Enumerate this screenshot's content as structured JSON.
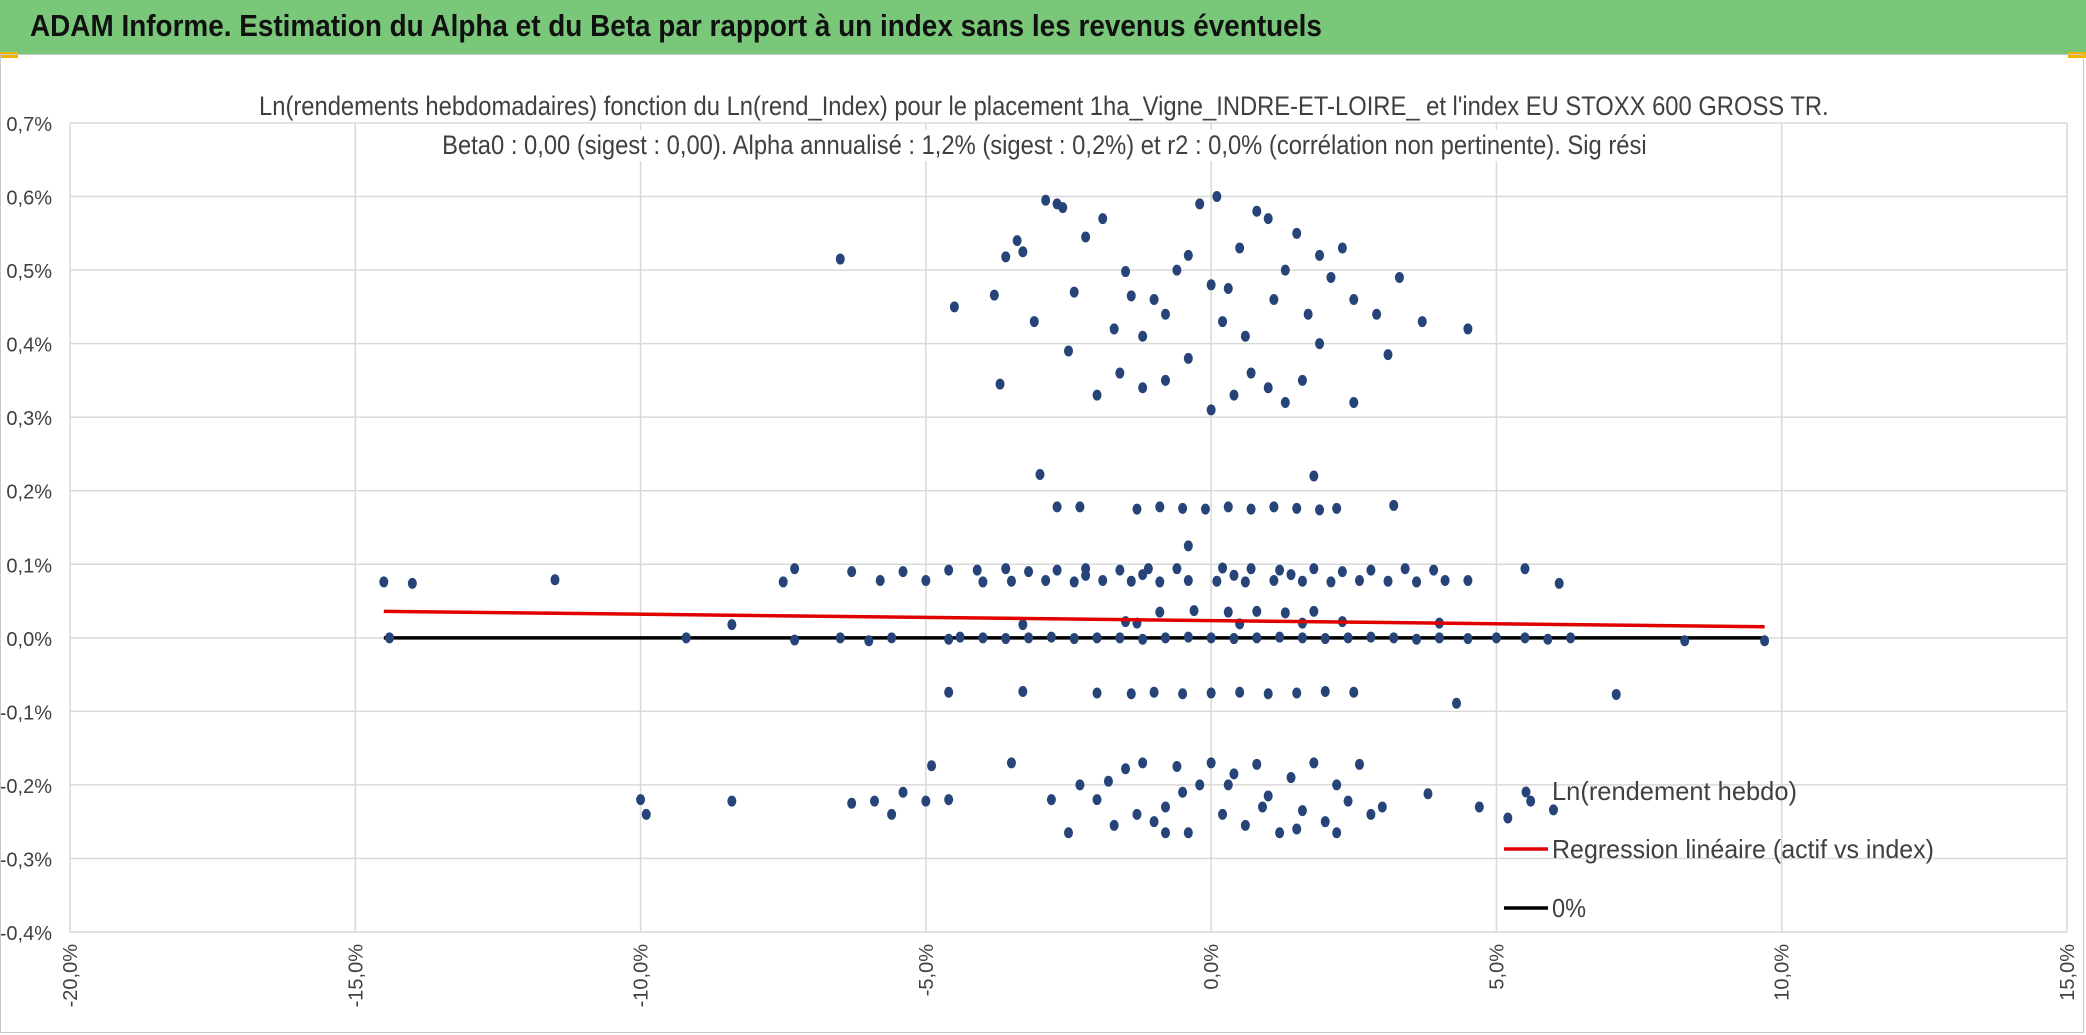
{
  "header": {
    "title": "ADAM Informe. Estimation du Alpha et du Beta par rapport à un index sans les revenus éventuels"
  },
  "colors": {
    "header_bg": "#79c879",
    "points": "#264478",
    "regression": "#e00000",
    "zero_line": "#000000",
    "grid": "#d9d9d9",
    "text": "#404040"
  },
  "chart_data": {
    "type": "scatter",
    "title_line1": "Ln(rendements hebdomadaires) fonction du Ln(rend_Index) pour le placement 1ha_Vigne_INDRE-ET-LOIRE_ et l'index EU STOXX 600 GROSS TR.",
    "title_line2": "Beta0 : 0,00 (sigest : 0,00). Alpha annualisé : 1,2% (sigest : 0,2%) et r2 : 0,0% (corrélation non pertinente). Sig rési",
    "xlim": [
      -20,
      15
    ],
    "ylim": [
      -0.4,
      0.7
    ],
    "x_ticks": [
      "-20,0%",
      "-15,0%",
      "-10,0%",
      "-5,0%",
      "0,0%",
      "5,0%",
      "10,0%",
      "15,0%"
    ],
    "y_ticks": [
      "0,7%",
      "0,6%",
      "0,5%",
      "0,4%",
      "0,3%",
      "0,2%",
      "0,1%",
      "0,0%",
      "-0,1%",
      "-0,2%",
      "-0,3%",
      "-0,4%"
    ],
    "legend": [
      {
        "label": "Ln(rendement hebdo)",
        "kind": "marker"
      },
      {
        "label": "Regression linéaire (actif vs index)",
        "kind": "red-line"
      },
      {
        "label": "0%",
        "kind": "black-line"
      }
    ],
    "series": [
      {
        "name": "Ln(rendement hebdo)",
        "points": [
          [
            -14.5,
            0.076
          ],
          [
            -14.0,
            0.074
          ],
          [
            -11.5,
            0.079
          ],
          [
            -7.5,
            0.076
          ],
          [
            -7.3,
            0.094
          ],
          [
            -6.3,
            0.09
          ],
          [
            -5.8,
            0.078
          ],
          [
            -5.4,
            0.09
          ],
          [
            -5.0,
            0.078
          ],
          [
            -4.6,
            0.092
          ],
          [
            -4.1,
            0.092
          ],
          [
            -3.6,
            0.094
          ],
          [
            -3.2,
            0.09
          ],
          [
            -2.7,
            0.092
          ],
          [
            -2.2,
            0.094
          ],
          [
            -1.6,
            0.092
          ],
          [
            -1.1,
            0.094
          ],
          [
            -0.6,
            0.094
          ],
          [
            0.2,
            0.095
          ],
          [
            0.7,
            0.094
          ],
          [
            1.2,
            0.092
          ],
          [
            1.8,
            0.094
          ],
          [
            2.3,
            0.09
          ],
          [
            2.8,
            0.092
          ],
          [
            3.4,
            0.094
          ],
          [
            3.9,
            0.092
          ],
          [
            4.5,
            0.078
          ],
          [
            5.5,
            0.094
          ],
          [
            6.1,
            0.074
          ],
          [
            -4.0,
            0.076
          ],
          [
            -3.5,
            0.077
          ],
          [
            -2.9,
            0.078
          ],
          [
            -2.4,
            0.076
          ],
          [
            -1.9,
            0.078
          ],
          [
            -1.4,
            0.077
          ],
          [
            -0.9,
            0.076
          ],
          [
            -0.4,
            0.078
          ],
          [
            0.1,
            0.077
          ],
          [
            0.6,
            0.076
          ],
          [
            1.1,
            0.078
          ],
          [
            1.6,
            0.077
          ],
          [
            2.1,
            0.076
          ],
          [
            2.6,
            0.078
          ],
          [
            3.1,
            0.077
          ],
          [
            3.6,
            0.076
          ],
          [
            4.1,
            0.078
          ],
          [
            -2.2,
            0.085
          ],
          [
            -1.2,
            0.086
          ],
          [
            0.4,
            0.085
          ],
          [
            1.4,
            0.086
          ],
          [
            -14.4,
            0.0
          ],
          [
            -9.2,
            0.0
          ],
          [
            -8.4,
            0.018
          ],
          [
            -7.3,
            -0.003
          ],
          [
            -6.5,
            0.0
          ],
          [
            -6.0,
            -0.004
          ],
          [
            -5.6,
            0.0
          ],
          [
            -4.6,
            -0.002
          ],
          [
            -4.4,
            0.001
          ],
          [
            -4.0,
            0.0
          ],
          [
            -3.6,
            -0.001
          ],
          [
            -3.2,
            0.0
          ],
          [
            -2.8,
            0.001
          ],
          [
            -2.4,
            -0.001
          ],
          [
            -2.0,
            0.0
          ],
          [
            -1.6,
            0.0
          ],
          [
            -1.2,
            -0.002
          ],
          [
            -0.8,
            0.0
          ],
          [
            -0.4,
            0.001
          ],
          [
            0.0,
            0.0
          ],
          [
            0.4,
            -0.001
          ],
          [
            0.8,
            0.0
          ],
          [
            1.2,
            0.001
          ],
          [
            1.6,
            0.0
          ],
          [
            2.0,
            -0.001
          ],
          [
            2.4,
            0.0
          ],
          [
            2.8,
            0.001
          ],
          [
            3.2,
            0.0
          ],
          [
            3.6,
            -0.002
          ],
          [
            4.0,
            0.0
          ],
          [
            4.5,
            -0.001
          ],
          [
            5.0,
            0.0
          ],
          [
            5.5,
            0.0
          ],
          [
            5.9,
            -0.002
          ],
          [
            6.3,
            0.0
          ],
          [
            8.3,
            -0.004
          ],
          [
            9.7,
            -0.004
          ],
          [
            -3.3,
            0.018
          ],
          [
            -1.3,
            0.02
          ],
          [
            0.5,
            0.019
          ],
          [
            1.6,
            0.02
          ],
          [
            4.0,
            0.02
          ],
          [
            -0.9,
            0.035
          ],
          [
            -0.3,
            0.037
          ],
          [
            0.3,
            0.035
          ],
          [
            0.8,
            0.036
          ],
          [
            1.3,
            0.034
          ],
          [
            1.8,
            0.036
          ],
          [
            -1.5,
            0.022
          ],
          [
            2.3,
            0.022
          ],
          [
            -4.6,
            -0.074
          ],
          [
            -3.3,
            -0.073
          ],
          [
            -2.0,
            -0.075
          ],
          [
            -1.4,
            -0.076
          ],
          [
            -1.0,
            -0.074
          ],
          [
            -0.5,
            -0.076
          ],
          [
            0.0,
            -0.075
          ],
          [
            0.5,
            -0.074
          ],
          [
            1.0,
            -0.076
          ],
          [
            1.5,
            -0.075
          ],
          [
            2.0,
            -0.073
          ],
          [
            2.5,
            -0.074
          ],
          [
            4.3,
            -0.089
          ],
          [
            7.1,
            -0.077
          ],
          [
            -2.7,
            0.178
          ],
          [
            -2.3,
            0.178
          ],
          [
            -1.3,
            0.175
          ],
          [
            -0.9,
            0.178
          ],
          [
            -0.5,
            0.176
          ],
          [
            -0.1,
            0.175
          ],
          [
            0.3,
            0.178
          ],
          [
            0.7,
            0.175
          ],
          [
            1.1,
            0.178
          ],
          [
            1.5,
            0.176
          ],
          [
            1.9,
            0.174
          ],
          [
            2.2,
            0.176
          ],
          [
            3.2,
            0.18
          ],
          [
            -3.0,
            0.222
          ],
          [
            1.8,
            0.22
          ],
          [
            -0.4,
            0.125
          ],
          [
            -6.5,
            0.515
          ],
          [
            -4.5,
            0.45
          ],
          [
            -3.8,
            0.466
          ],
          [
            -3.6,
            0.518
          ],
          [
            -3.4,
            0.54
          ],
          [
            -3.3,
            0.525
          ],
          [
            -3.1,
            0.43
          ],
          [
            -2.9,
            0.595
          ],
          [
            -2.7,
            0.59
          ],
          [
            -2.6,
            0.585
          ],
          [
            -2.4,
            0.47
          ],
          [
            -2.2,
            0.545
          ],
          [
            -1.9,
            0.57
          ],
          [
            -1.7,
            0.42
          ],
          [
            -1.5,
            0.498
          ],
          [
            -1.4,
            0.465
          ],
          [
            -1.2,
            0.41
          ],
          [
            -1.0,
            0.46
          ],
          [
            -0.8,
            0.44
          ],
          [
            -0.6,
            0.5
          ],
          [
            -0.4,
            0.52
          ],
          [
            -0.2,
            0.59
          ],
          [
            0.0,
            0.48
          ],
          [
            0.1,
            0.6
          ],
          [
            0.2,
            0.43
          ],
          [
            0.3,
            0.475
          ],
          [
            0.5,
            0.53
          ],
          [
            0.6,
            0.41
          ],
          [
            0.8,
            0.58
          ],
          [
            1.0,
            0.57
          ],
          [
            1.1,
            0.46
          ],
          [
            1.3,
            0.5
          ],
          [
            1.5,
            0.55
          ],
          [
            1.7,
            0.44
          ],
          [
            1.9,
            0.52
          ],
          [
            2.1,
            0.49
          ],
          [
            2.3,
            0.53
          ],
          [
            2.5,
            0.46
          ],
          [
            2.9,
            0.44
          ],
          [
            3.3,
            0.49
          ],
          [
            3.7,
            0.43
          ],
          [
            4.5,
            0.42
          ],
          [
            -3.7,
            0.345
          ],
          [
            -2.5,
            0.39
          ],
          [
            -2.0,
            0.33
          ],
          [
            -1.6,
            0.36
          ],
          [
            -1.2,
            0.34
          ],
          [
            -0.8,
            0.35
          ],
          [
            -0.4,
            0.38
          ],
          [
            0.0,
            0.31
          ],
          [
            0.4,
            0.33
          ],
          [
            0.7,
            0.36
          ],
          [
            1.0,
            0.34
          ],
          [
            1.3,
            0.32
          ],
          [
            1.6,
            0.35
          ],
          [
            1.9,
            0.4
          ],
          [
            2.5,
            0.32
          ],
          [
            3.1,
            0.385
          ],
          [
            -2.0,
            -0.22
          ],
          [
            -1.8,
            -0.195
          ],
          [
            -1.5,
            -0.178
          ],
          [
            -1.2,
            -0.17
          ],
          [
            -1.0,
            -0.25
          ],
          [
            -0.8,
            -0.23
          ],
          [
            -0.6,
            -0.175
          ],
          [
            -0.4,
            -0.265
          ],
          [
            -0.2,
            -0.2
          ],
          [
            0.0,
            -0.17
          ],
          [
            0.2,
            -0.24
          ],
          [
            0.4,
            -0.185
          ],
          [
            0.6,
            -0.255
          ],
          [
            0.8,
            -0.172
          ],
          [
            1.0,
            -0.215
          ],
          [
            1.2,
            -0.265
          ],
          [
            1.4,
            -0.19
          ],
          [
            1.6,
            -0.235
          ],
          [
            1.8,
            -0.17
          ],
          [
            2.0,
            -0.25
          ],
          [
            2.2,
            -0.2
          ],
          [
            2.4,
            -0.222
          ],
          [
            2.6,
            -0.172
          ],
          [
            2.8,
            -0.24
          ],
          [
            3.0,
            -0.23
          ],
          [
            3.8,
            -0.212
          ],
          [
            -10.0,
            -0.22
          ],
          [
            -9.9,
            -0.24
          ],
          [
            -8.4,
            -0.222
          ],
          [
            -6.3,
            -0.225
          ],
          [
            -5.9,
            -0.222
          ],
          [
            -5.6,
            -0.24
          ],
          [
            -5.4,
            -0.21
          ],
          [
            -5.0,
            -0.222
          ],
          [
            -4.9,
            -0.174
          ],
          [
            -4.6,
            -0.22
          ],
          [
            -3.5,
            -0.17
          ],
          [
            -2.8,
            -0.22
          ],
          [
            -2.5,
            -0.265
          ],
          [
            -2.3,
            -0.2
          ],
          [
            -1.7,
            -0.255
          ],
          [
            4.7,
            -0.23
          ],
          [
            5.2,
            -0.245
          ],
          [
            5.6,
            -0.222
          ],
          [
            6.0,
            -0.234
          ],
          [
            -0.8,
            -0.265
          ],
          [
            0.9,
            -0.23
          ],
          [
            1.5,
            -0.26
          ],
          [
            -1.3,
            -0.24
          ],
          [
            0.3,
            -0.2
          ],
          [
            -0.5,
            -0.21
          ],
          [
            2.2,
            -0.265
          ]
        ]
      }
    ],
    "regression": {
      "name": "Regression linéaire (actif vs index)",
      "points": [
        [
          -14.5,
          0.036
        ],
        [
          9.7,
          0.015
        ]
      ]
    },
    "zero_line": {
      "name": "0%",
      "points": [
        [
          -14.5,
          0.0
        ],
        [
          9.7,
          0.0
        ]
      ]
    }
  }
}
